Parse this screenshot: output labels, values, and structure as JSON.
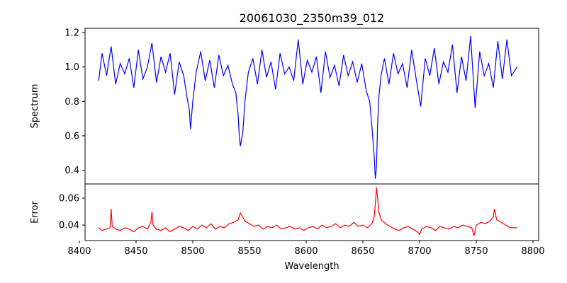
{
  "chart_data": [
    {
      "type": "line",
      "title": "20061030_2350m39_012",
      "xlabel": "",
      "ylabel": "Spectrum",
      "xlim": [
        8405,
        8805
      ],
      "ylim": [
        0.32,
        1.225
      ],
      "yticks": [
        0.4,
        0.6,
        0.8,
        1.0,
        1.2
      ],
      "ytick_labels": [
        "0.4",
        "0.6",
        "0.8",
        "1.0",
        "1.2"
      ],
      "color": "#0000ff",
      "series": [
        {
          "x": [
            8417,
            8420,
            8424,
            8428,
            8432,
            8436,
            8440,
            8444,
            8448,
            8452,
            8456,
            8460,
            8464,
            8468,
            8472,
            8476,
            8480,
            8484,
            8488,
            8492,
            8495,
            8497,
            8498,
            8500,
            8503,
            8507,
            8511,
            8515,
            8519,
            8523,
            8527,
            8531,
            8535,
            8538,
            8540,
            8541,
            8542,
            8543,
            8544,
            8546,
            8549,
            8553,
            8557,
            8561,
            8565,
            8569,
            8573,
            8577,
            8581,
            8585,
            8589,
            8593,
            8597,
            8601,
            8605,
            8609,
            8613,
            8617,
            8621,
            8625,
            8629,
            8633,
            8637,
            8641,
            8645,
            8649,
            8653,
            8656,
            8658,
            8660,
            8661,
            8662,
            8663,
            8664,
            8666,
            8669,
            8673,
            8677,
            8681,
            8685,
            8689,
            8693,
            8697,
            8701,
            8705,
            8709,
            8713,
            8717,
            8721,
            8725,
            8729,
            8733,
            8737,
            8741,
            8745,
            8749,
            8753,
            8757,
            8761,
            8765,
            8769,
            8773,
            8777,
            8781,
            8786
          ],
          "y": [
            0.92,
            1.08,
            0.95,
            1.12,
            0.9,
            1.02,
            0.96,
            1.05,
            0.88,
            1.1,
            0.93,
            1.0,
            1.14,
            0.91,
            1.06,
            0.97,
            1.08,
            0.84,
            1.03,
            0.95,
            0.82,
            0.75,
            0.64,
            0.8,
            0.97,
            1.09,
            0.92,
            1.04,
            0.88,
            1.07,
            0.95,
            1.01,
            0.9,
            0.85,
            0.72,
            0.6,
            0.54,
            0.58,
            0.61,
            0.8,
            0.97,
            1.05,
            0.9,
            1.1,
            0.94,
            1.03,
            0.87,
            1.08,
            0.96,
            1.0,
            0.92,
            1.16,
            0.9,
            1.04,
            0.97,
            1.06,
            0.85,
            1.09,
            0.94,
            1.01,
            0.89,
            1.07,
            0.95,
            1.03,
            0.91,
            1.02,
            0.86,
            0.8,
            0.65,
            0.48,
            0.35,
            0.42,
            0.67,
            0.82,
            0.95,
            1.05,
            0.9,
            1.08,
            0.96,
            1.02,
            0.88,
            1.1,
            0.93,
            0.77,
            1.05,
            0.95,
            1.11,
            0.9,
            1.03,
            0.97,
            1.13,
            0.85,
            1.06,
            0.92,
            1.18,
            0.76,
            1.09,
            0.95,
            1.02,
            0.88,
            1.15,
            0.93,
            1.16,
            0.95,
            1.0
          ]
        }
      ]
    },
    {
      "type": "line",
      "title": "",
      "xlabel": "Wavelength",
      "ylabel": "Error",
      "xlim": [
        8405,
        8805
      ],
      "ylim": [
        0.0285,
        0.0705
      ],
      "yticks": [
        0.04,
        0.06
      ],
      "ytick_labels": [
        "0.04",
        "0.06"
      ],
      "xticks": [
        8400,
        8450,
        8500,
        8550,
        8600,
        8650,
        8700,
        8750,
        8800
      ],
      "xtick_labels": [
        "8400",
        "8450",
        "8500",
        "8550",
        "8600",
        "8650",
        "8700",
        "8750",
        "8800"
      ],
      "color": "#ff0000",
      "series": [
        {
          "x": [
            8417,
            8420,
            8424,
            8427,
            8428,
            8429,
            8432,
            8436,
            8440,
            8444,
            8448,
            8452,
            8456,
            8460,
            8463,
            8464,
            8465,
            8468,
            8472,
            8476,
            8480,
            8484,
            8488,
            8492,
            8496,
            8500,
            8504,
            8508,
            8512,
            8516,
            8520,
            8524,
            8528,
            8532,
            8536,
            8540,
            8542,
            8544,
            8546,
            8550,
            8554,
            8558,
            8562,
            8566,
            8570,
            8574,
            8578,
            8582,
            8586,
            8590,
            8594,
            8598,
            8602,
            8606,
            8610,
            8614,
            8618,
            8622,
            8626,
            8630,
            8634,
            8638,
            8642,
            8646,
            8650,
            8654,
            8658,
            8660,
            8661,
            8662,
            8663,
            8664,
            8666,
            8670,
            8674,
            8678,
            8682,
            8686,
            8690,
            8694,
            8698,
            8700,
            8702,
            8706,
            8710,
            8714,
            8718,
            8722,
            8726,
            8730,
            8734,
            8738,
            8742,
            8746,
            8748,
            8750,
            8754,
            8758,
            8762,
            8765,
            8766,
            8768,
            8772,
            8776,
            8780,
            8786
          ],
          "y": [
            0.038,
            0.036,
            0.037,
            0.038,
            0.052,
            0.039,
            0.037,
            0.036,
            0.038,
            0.037,
            0.035,
            0.038,
            0.039,
            0.037,
            0.042,
            0.05,
            0.04,
            0.037,
            0.036,
            0.038,
            0.035,
            0.037,
            0.039,
            0.038,
            0.036,
            0.039,
            0.037,
            0.04,
            0.038,
            0.041,
            0.037,
            0.039,
            0.038,
            0.041,
            0.042,
            0.044,
            0.049,
            0.046,
            0.043,
            0.041,
            0.039,
            0.04,
            0.037,
            0.039,
            0.038,
            0.04,
            0.037,
            0.038,
            0.039,
            0.037,
            0.038,
            0.036,
            0.038,
            0.039,
            0.037,
            0.04,
            0.038,
            0.039,
            0.041,
            0.038,
            0.04,
            0.039,
            0.042,
            0.039,
            0.04,
            0.038,
            0.041,
            0.046,
            0.056,
            0.068,
            0.06,
            0.05,
            0.044,
            0.041,
            0.039,
            0.037,
            0.036,
            0.038,
            0.039,
            0.037,
            0.035,
            0.033,
            0.037,
            0.039,
            0.038,
            0.036,
            0.039,
            0.038,
            0.037,
            0.039,
            0.038,
            0.04,
            0.039,
            0.038,
            0.032,
            0.04,
            0.042,
            0.041,
            0.043,
            0.046,
            0.052,
            0.044,
            0.042,
            0.04,
            0.038,
            0.038
          ]
        }
      ]
    }
  ]
}
